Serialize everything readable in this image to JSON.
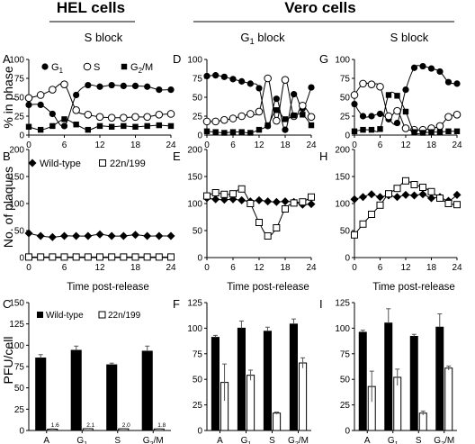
{
  "headers": {
    "hel": "HEL cells",
    "vero": "Vero cells"
  },
  "row_labels": {
    "phase": "% in phase",
    "plaques": "No. of plaques",
    "pfu": "PFU/cell"
  },
  "xlabel_time": "Time post-release",
  "panels": [
    {
      "letter": "A",
      "title": "S block"
    },
    {
      "letter": "D",
      "title": "G1 block"
    },
    {
      "letter": "G",
      "title": "S block"
    },
    {
      "letter": "B",
      "title": ""
    },
    {
      "letter": "E",
      "title": ""
    },
    {
      "letter": "H",
      "title": ""
    },
    {
      "letter": "C",
      "title": ""
    },
    {
      "letter": "F",
      "title": ""
    },
    {
      "letter": "I",
      "title": ""
    }
  ],
  "legends": {
    "phase": [
      "G1",
      "S",
      "G2/M"
    ],
    "plaques": [
      "Wild-type",
      "22n/199"
    ],
    "pfu": [
      "Wild-type",
      "22n/199"
    ]
  },
  "chart_data": [
    {
      "panel": "A",
      "type": "line",
      "x": [
        0,
        2,
        4,
        6,
        8,
        10,
        12,
        14,
        16,
        18,
        20,
        22,
        24
      ],
      "series": [
        {
          "name": "G1",
          "values": [
            40,
            40,
            28,
            12,
            53,
            66,
            64,
            66,
            65,
            65,
            64,
            60,
            60
          ]
        },
        {
          "name": "S",
          "values": [
            49,
            53,
            60,
            67,
            33,
            27,
            24,
            23,
            23,
            24,
            24,
            27,
            28
          ]
        },
        {
          "name": "G2/M",
          "values": [
            11,
            7,
            12,
            21,
            14,
            7,
            12,
            11,
            12,
            11,
            12,
            13,
            12
          ]
        }
      ],
      "ylim": [
        0,
        100
      ],
      "yticks": [
        0,
        25,
        50,
        75,
        100
      ],
      "xticks": [
        0,
        6,
        12,
        18,
        24
      ]
    },
    {
      "panel": "D",
      "type": "line",
      "x": [
        0,
        2,
        4,
        6,
        8,
        10,
        12,
        14,
        16,
        18,
        20,
        22,
        24
      ],
      "series": [
        {
          "name": "G1",
          "values": [
            78,
            79,
            77,
            74,
            71,
            68,
            62,
            12,
            48,
            7,
            54,
            35,
            63
          ]
        },
        {
          "name": "S",
          "values": [
            18,
            18,
            20,
            22,
            25,
            28,
            31,
            75,
            19,
            73,
            25,
            39,
            24
          ]
        },
        {
          "name": "G2/M",
          "values": [
            5,
            4,
            3,
            4,
            4,
            3,
            7,
            13,
            33,
            21,
            26,
            27,
            13
          ]
        }
      ],
      "ylim": [
        0,
        100
      ],
      "yticks": [
        0,
        25,
        50,
        75,
        100
      ],
      "xticks": [
        0,
        6,
        12,
        18,
        24
      ]
    },
    {
      "panel": "G",
      "type": "line",
      "x": [
        0,
        2,
        4,
        6,
        8,
        10,
        12,
        14,
        16,
        18,
        20,
        22,
        24
      ],
      "series": [
        {
          "name": "G1",
          "values": [
            41,
            25,
            25,
            28,
            21,
            16,
            60,
            89,
            91,
            88,
            84,
            70,
            68
          ]
        },
        {
          "name": "S",
          "values": [
            53,
            68,
            67,
            64,
            25,
            32,
            9,
            7,
            7,
            9,
            12,
            24,
            27
          ]
        },
        {
          "name": "G2/M",
          "values": [
            5,
            7,
            7,
            8,
            53,
            52,
            31,
            4,
            3,
            4,
            4,
            5,
            5
          ]
        }
      ],
      "ylim": [
        0,
        100
      ],
      "yticks": [
        0,
        25,
        50,
        75,
        100
      ],
      "xticks": [
        0,
        6,
        12,
        18,
        24
      ]
    },
    {
      "panel": "B",
      "type": "line",
      "x": [
        0,
        2,
        4,
        6,
        8,
        10,
        12,
        14,
        16,
        18,
        20,
        22,
        24
      ],
      "series": [
        {
          "name": "Wild-type",
          "values": [
            45,
            40,
            38,
            40,
            40,
            40,
            43,
            40,
            40,
            42,
            40,
            40,
            40
          ]
        },
        {
          "name": "22n/199",
          "values": [
            1,
            1,
            1,
            1,
            1,
            1,
            1,
            1,
            1,
            1,
            1,
            1,
            1
          ]
        }
      ],
      "ylim": [
        0,
        200
      ],
      "yticks": [
        0,
        50,
        100,
        150,
        200
      ],
      "xticks": [
        0,
        6,
        12,
        18,
        24
      ]
    },
    {
      "panel": "E",
      "type": "line",
      "x": [
        0,
        2,
        4,
        6,
        8,
        10,
        12,
        14,
        16,
        18,
        20,
        22,
        24
      ],
      "series": [
        {
          "name": "Wild-type",
          "values": [
            110,
            108,
            107,
            108,
            106,
            104,
            106,
            104,
            103,
            104,
            103,
            98,
            99
          ]
        },
        {
          "name": "22n/199",
          "values": [
            114,
            120,
            117,
            118,
            127,
            100,
            65,
            40,
            55,
            90,
            101,
            103,
            112
          ]
        }
      ],
      "ylim": [
        0,
        200
      ],
      "yticks": [
        0,
        50,
        100,
        150,
        200
      ],
      "xticks": [
        0,
        6,
        12,
        18,
        24
      ]
    },
    {
      "panel": "H",
      "type": "line",
      "x": [
        0,
        2,
        4,
        6,
        8,
        10,
        12,
        14,
        16,
        18,
        20,
        22,
        24
      ],
      "series": [
        {
          "name": "Wild-type",
          "values": [
            108,
            112,
            117,
            112,
            115,
            112,
            116,
            115,
            117,
            110,
            112,
            105,
            116
          ]
        },
        {
          "name": "22n/199",
          "values": [
            42,
            62,
            80,
            97,
            118,
            128,
            142,
            135,
            130,
            122,
            110,
            100,
            98
          ]
        }
      ],
      "ylim": [
        0,
        200
      ],
      "yticks": [
        0,
        50,
        100,
        150,
        200
      ],
      "xticks": [
        0,
        6,
        12,
        18,
        24
      ]
    },
    {
      "panel": "C",
      "type": "bar",
      "categories": [
        "A",
        "G1",
        "S",
        "G2/M"
      ],
      "series": [
        {
          "name": "Wild-type",
          "values": [
            85,
            94,
            77,
            93
          ],
          "errors": [
            4,
            5,
            2,
            6
          ]
        },
        {
          "name": "22n/199",
          "values": [
            1.6,
            2.1,
            2.0,
            1.8
          ],
          "errors": [
            0.3,
            0.3,
            0.3,
            0.3
          ],
          "labels": [
            "1.6",
            "2.1",
            "2.0",
            "1.8"
          ]
        }
      ],
      "ylim": [
        0,
        150
      ],
      "yticks": [
        0,
        25,
        50,
        75,
        100,
        125,
        150
      ]
    },
    {
      "panel": "F",
      "type": "bar",
      "categories": [
        "A",
        "G1",
        "S",
        "G2/M"
      ],
      "series": [
        {
          "name": "Wild-type",
          "values": [
            91,
            100,
            97,
            104
          ],
          "errors": [
            2,
            7,
            4,
            5
          ]
        },
        {
          "name": "22n/199",
          "values": [
            47,
            54,
            17,
            66
          ],
          "errors": [
            18,
            5,
            1,
            5
          ]
        }
      ],
      "ylim": [
        0,
        125
      ],
      "yticks": [
        0,
        25,
        50,
        75,
        100,
        125
      ]
    },
    {
      "panel": "I",
      "type": "bar",
      "categories": [
        "A",
        "G1",
        "S",
        "G2/M"
      ],
      "series": [
        {
          "name": "Wild-type",
          "values": [
            96,
            105,
            92,
            101
          ],
          "errors": [
            2,
            14,
            2,
            13
          ]
        },
        {
          "name": "22n/199",
          "values": [
            43,
            52,
            17,
            61
          ],
          "errors": [
            15,
            8,
            2,
            2
          ]
        }
      ],
      "ylim": [
        0,
        125
      ],
      "yticks": [
        0,
        25,
        50,
        75,
        100,
        125
      ]
    }
  ]
}
